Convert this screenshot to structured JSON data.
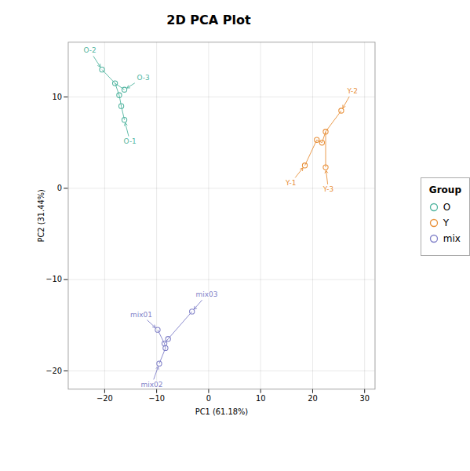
{
  "chart_data": {
    "type": "scatter",
    "title": "2D PCA Plot",
    "xlabel": "PC1 (61.18%)",
    "ylabel": "PC2 (31.44%)",
    "xlim": [
      -27,
      32
    ],
    "ylim": [
      -22,
      16
    ],
    "xticks": [
      -20,
      -10,
      0,
      10,
      20,
      30
    ],
    "yticks": [
      -20,
      -10,
      0,
      10
    ],
    "grid": true,
    "legend": "right",
    "legend_title": "Group",
    "series": [
      {
        "name": "O",
        "color": "#52b5a0",
        "x": [
          -20.5,
          -18.0,
          -16.2,
          -17.2,
          -16.8,
          -16.2
        ],
        "y": [
          13.0,
          11.5,
          10.8,
          10.2,
          9.0,
          7.5
        ],
        "labels": [
          "O-2",
          null,
          "O-3",
          null,
          null,
          "O-1"
        ],
        "links": [
          [
            0,
            1
          ],
          [
            1,
            2
          ],
          [
            1,
            3
          ],
          [
            3,
            4
          ],
          [
            4,
            5
          ]
        ]
      },
      {
        "name": "Y",
        "color": "#e8903a",
        "x": [
          18.5,
          20.8,
          21.8,
          22.5,
          25.5,
          22.5
        ],
        "y": [
          2.5,
          5.3,
          5.0,
          6.2,
          8.5,
          2.3
        ],
        "labels": [
          "Y-1",
          null,
          null,
          null,
          "Y-2",
          "Y-3"
        ],
        "links": [
          [
            0,
            1
          ],
          [
            1,
            2
          ],
          [
            2,
            3
          ],
          [
            3,
            4
          ],
          [
            3,
            5
          ]
        ]
      },
      {
        "name": "mix",
        "color": "#8080c8",
        "x": [
          -9.8,
          -8.5,
          -7.8,
          -8.3,
          -9.5,
          -3.2
        ],
        "y": [
          -15.5,
          -17.0,
          -16.5,
          -17.5,
          -19.2,
          -13.5
        ],
        "labels": [
          "mix01",
          null,
          null,
          null,
          "mix02",
          "mix03"
        ],
        "links": [
          [
            0,
            1
          ],
          [
            1,
            2
          ],
          [
            1,
            3
          ],
          [
            3,
            4
          ],
          [
            2,
            5
          ]
        ]
      }
    ]
  }
}
